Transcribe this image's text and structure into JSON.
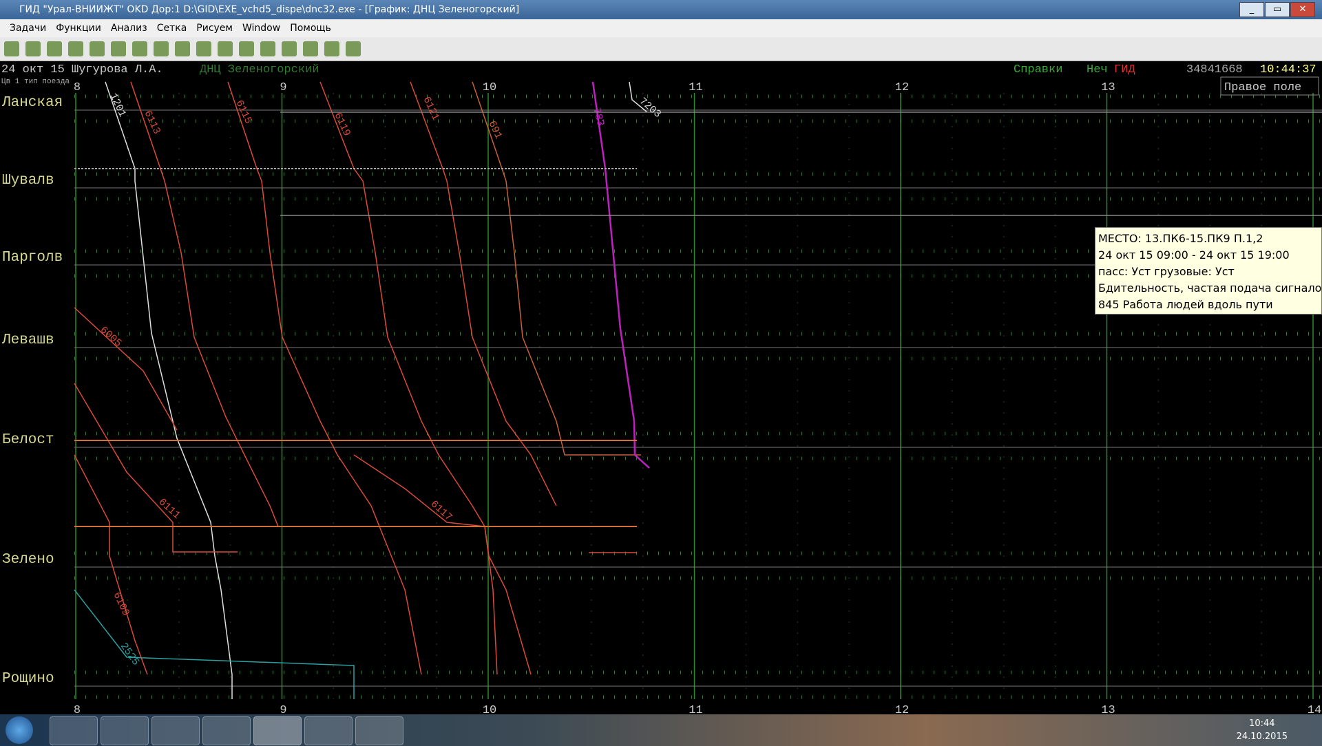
{
  "window": {
    "title": "ГИД \"Урал-ВНИИЖТ\" OKD Дор:1 D:\\GID\\EXE_vchd5_dispe\\dnc32.exe - [График: ДНЦ Зеленогорский]",
    "menu": [
      "Задачи",
      "Функции",
      "Анализ",
      "Сетка",
      "Рисуем",
      "Window",
      "Помощь"
    ]
  },
  "header": {
    "date_user": "24 окт 15 Шугурова Л.А.",
    "dispatcher": "ДНЦ Зеленогорский",
    "help": "Справки",
    "odd": "Неч",
    "gid": "ГИД",
    "number": "34841668",
    "clock": "10:44:37",
    "legend_hint": "Цв 1 тип поезда",
    "right_field": "Правое поле"
  },
  "graph": {
    "hours": [
      "8",
      "9",
      "10",
      "11",
      "12",
      "13",
      "14"
    ],
    "stations": [
      "Ланская",
      "Шувалв",
      "Парголв",
      "Левашв",
      "Белост",
      "Зелено",
      "Рощино"
    ],
    "trains": [
      "1201",
      "6113",
      "6115",
      "6119",
      "6121",
      "691",
      "6005",
      "6111",
      "6109",
      "6117",
      "2525",
      "783",
      "7203"
    ]
  },
  "tooltip": {
    "lines": [
      "МЕСТО: 13.ПК6-15.ПК9 П.1,2",
      "24 окт 15 09:00 - 24 окт 15 19:00",
      "пасс: Уст грузовые: Уст",
      "Бдительность, частая подача сигналов",
      "845 Работа людей вдоль пути"
    ]
  },
  "taskbar": {
    "time": "10:44",
    "date": "24.10.2015"
  }
}
